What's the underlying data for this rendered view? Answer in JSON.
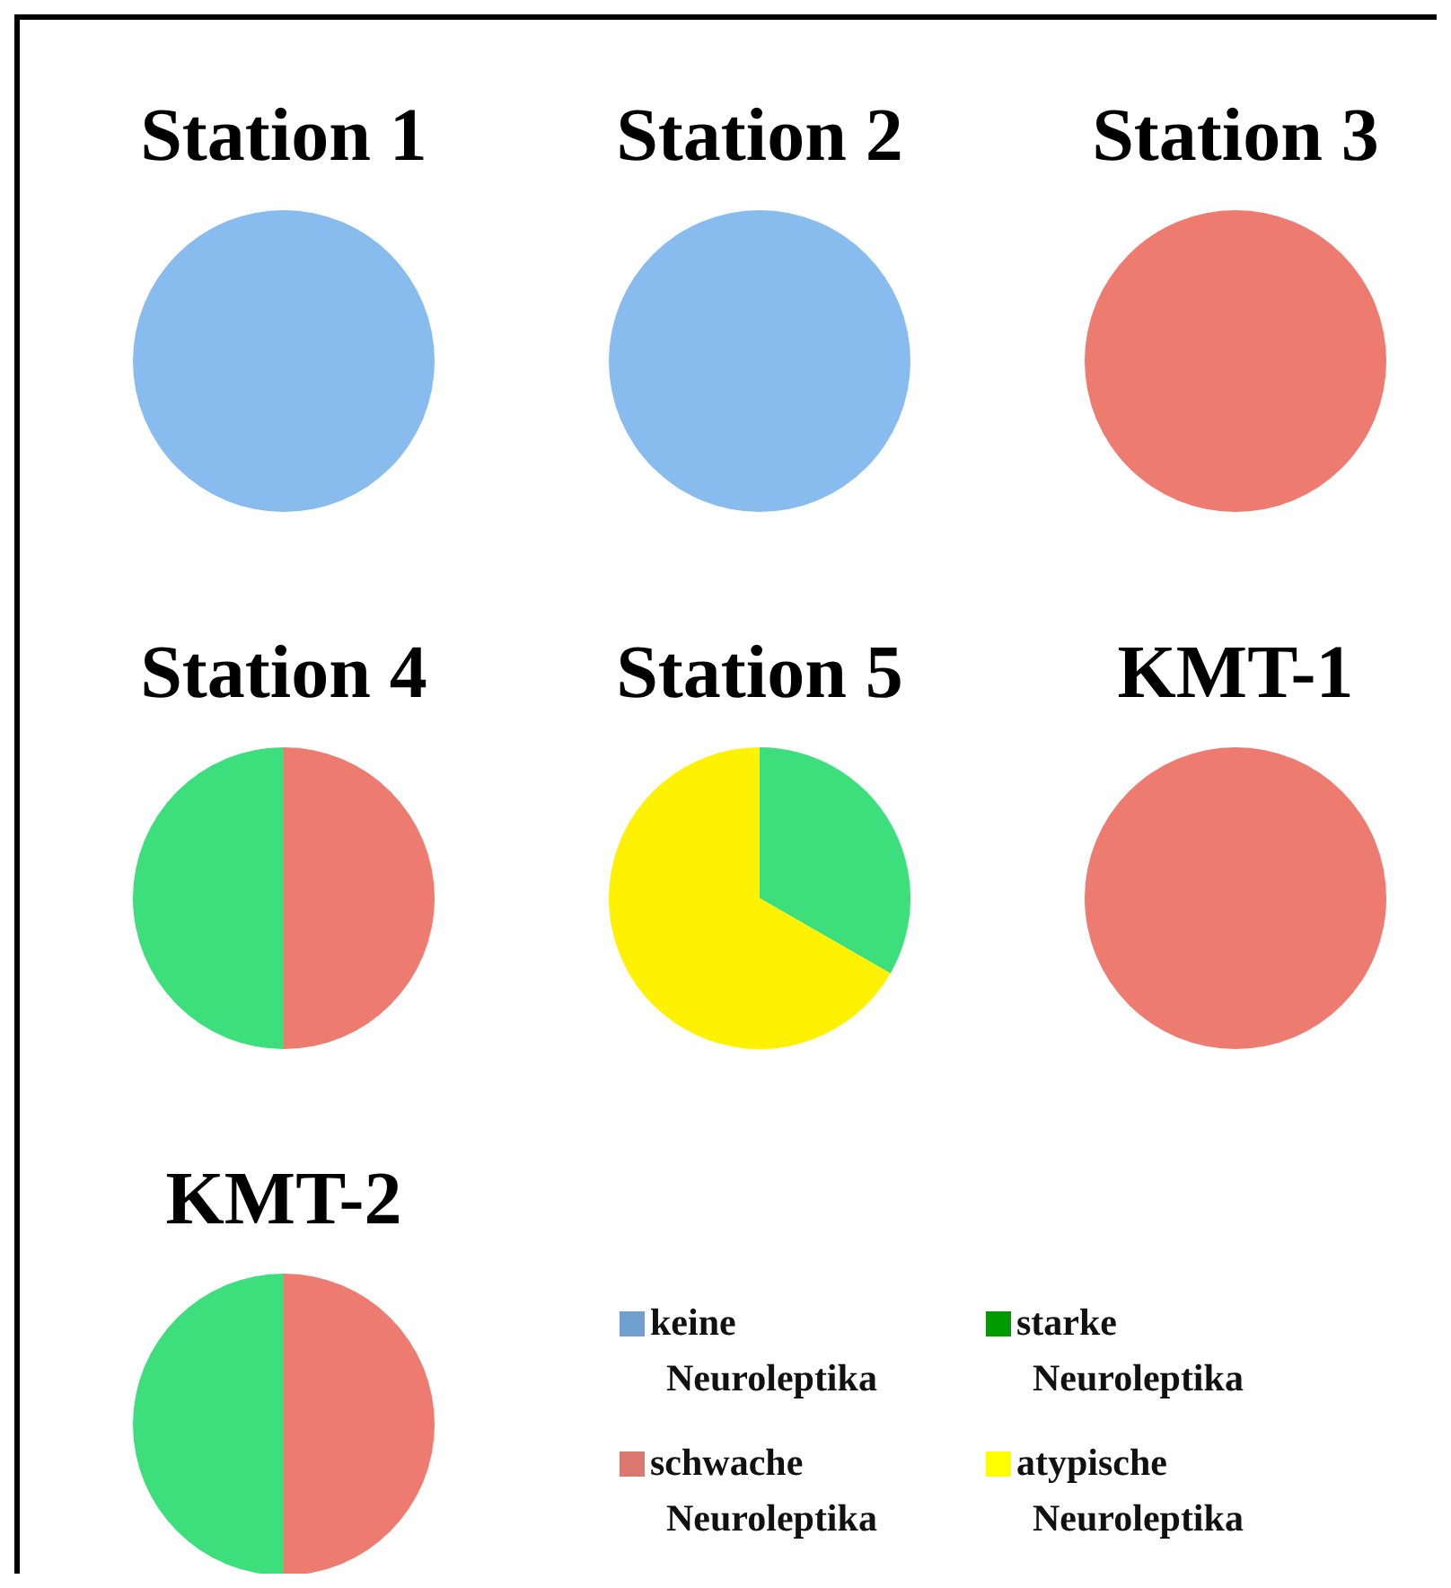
{
  "chart_data": [
    {
      "type": "pie",
      "title": "Station 1",
      "categories": [
        null
      ],
      "values": [
        100
      ],
      "colors": [
        "#88bbee"
      ]
    },
    {
      "type": "pie",
      "title": "Station 2",
      "categories": [
        null
      ],
      "values": [
        100
      ],
      "colors": [
        "#88bbee"
      ]
    },
    {
      "type": "pie",
      "title": "Station 3",
      "categories": [
        null
      ],
      "values": [
        100
      ],
      "colors": [
        "#ee7b70"
      ]
    },
    {
      "type": "pie",
      "title": "Station 4",
      "categories": [
        null,
        null
      ],
      "values": [
        50,
        50
      ],
      "colors": [
        "#ee7b70",
        "#3ddf7c"
      ]
    },
    {
      "type": "pie",
      "title": "Station 5",
      "categories": [
        null,
        null
      ],
      "values": [
        33.3,
        66.7
      ],
      "colors": [
        "#3ddf7c",
        "#fff200"
      ]
    },
    {
      "type": "pie",
      "title": "KMT-1",
      "categories": [
        null
      ],
      "values": [
        100
      ],
      "colors": [
        "#ee7b70"
      ]
    },
    {
      "type": "pie",
      "title": "KMT-2",
      "categories": [
        null,
        null
      ],
      "values": [
        50,
        50
      ],
      "colors": [
        "#ee7b70",
        "#3ddf7c"
      ]
    },
    {
      "type": "other",
      "categories": [
        "keine Neuroleptika",
        "starke Neuroleptika",
        "schwache Neuroleptika",
        "atypische Neuroleptika"
      ],
      "colors": [
        "#6fa0d0",
        "#009a00",
        "#db7870",
        "#ffff00"
      ]
    }
  ]
}
